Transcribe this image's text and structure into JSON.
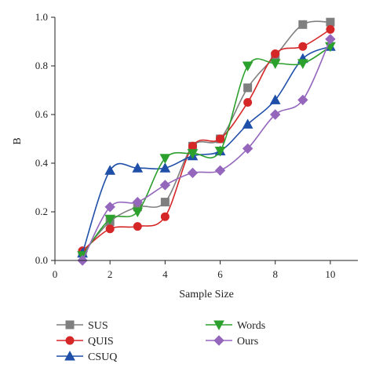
{
  "chart_data": {
    "type": "line",
    "xlabel": "Sample Size",
    "ylabel": "B",
    "xlim": [
      0,
      11
    ],
    "ylim": [
      0,
      1.0
    ],
    "xticks": [
      0,
      2,
      4,
      6,
      8,
      10
    ],
    "yticks": [
      0.0,
      0.2,
      0.4,
      0.6,
      0.8,
      1.0
    ],
    "ytick_labels": [
      "0.0",
      "0.2",
      "0.4",
      "0.6",
      "0.8",
      "1.0"
    ],
    "grid": false,
    "legend_position": "bottom",
    "series": [
      {
        "name": "SUS",
        "marker": "square",
        "color": "#7f7f7f",
        "x": [
          1,
          2,
          3,
          4,
          5,
          6,
          7,
          8,
          9,
          10
        ],
        "y": [
          0.03,
          0.16,
          0.22,
          0.24,
          0.47,
          0.5,
          0.71,
          0.84,
          0.97,
          0.98
        ]
      },
      {
        "name": "QUIS",
        "marker": "circle",
        "color": "#d62728",
        "x": [
          1,
          2,
          3,
          4,
          5,
          6,
          7,
          8,
          9,
          10
        ],
        "y": [
          0.04,
          0.13,
          0.14,
          0.18,
          0.47,
          0.5,
          0.65,
          0.85,
          0.88,
          0.95
        ]
      },
      {
        "name": "CSUQ",
        "marker": "triangle-up",
        "color": "#1f4fa8",
        "x": [
          1,
          2,
          3,
          4,
          5,
          6,
          7,
          8,
          9,
          10
        ],
        "y": [
          0.03,
          0.37,
          0.38,
          0.38,
          0.43,
          0.45,
          0.56,
          0.66,
          0.83,
          0.88
        ]
      },
      {
        "name": "Words",
        "marker": "triangle-down",
        "color": "#2ca02c",
        "x": [
          1,
          2,
          3,
          4,
          5,
          6,
          7,
          8,
          9,
          10
        ],
        "y": [
          0.02,
          0.17,
          0.2,
          0.42,
          0.44,
          0.45,
          0.8,
          0.81,
          0.81,
          0.88
        ]
      },
      {
        "name": "Ours",
        "marker": "diamond",
        "color": "#9467bd",
        "x": [
          1,
          2,
          3,
          4,
          5,
          6,
          7,
          8,
          9,
          10
        ],
        "y": [
          0.0,
          0.22,
          0.24,
          0.31,
          0.36,
          0.37,
          0.46,
          0.6,
          0.66,
          0.91
        ]
      }
    ]
  }
}
